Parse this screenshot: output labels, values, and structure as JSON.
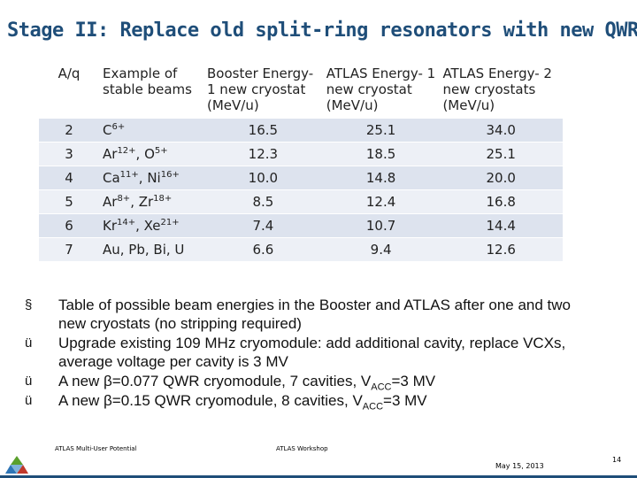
{
  "title": "Stage II: Replace old split-ring resonators with new QWRs",
  "table": {
    "headers": [
      "A/q",
      "Example of stable beams",
      "Booster Energy- 1 new cryostat (MeV/u)",
      "ATLAS Energy- 1 new cryostat (MeV/u)",
      "ATLAS Energy- 2 new cryostats (MeV/u)"
    ],
    "rows": [
      {
        "aq": "2",
        "b1": "C",
        "c1": "6+",
        "b2": "",
        "c2": "",
        "be": "16.5",
        "a1": "25.1",
        "a2": "34.0"
      },
      {
        "aq": "3",
        "b1": "Ar",
        "c1": "12+",
        "b2": ", O",
        "c2": "5+",
        "be": "12.3",
        "a1": "18.5",
        "a2": "25.1"
      },
      {
        "aq": "4",
        "b1": "Ca",
        "c1": "11+",
        "b2": ", Ni",
        "c2": "16+",
        "be": "10.0",
        "a1": "14.8",
        "a2": "20.0"
      },
      {
        "aq": "5",
        "b1": "Ar",
        "c1": "8+",
        "b2": ", Zr",
        "c2": "18+",
        "be": "8.5",
        "a1": "12.4",
        "a2": "16.8"
      },
      {
        "aq": "6",
        "b1": "Kr",
        "c1": "14+",
        "b2": ", Xe",
        "c2": "21+",
        "be": "7.4",
        "a1": "10.7",
        "a2": "14.4"
      },
      {
        "aq": "7",
        "b1": "Au, Pb, Bi, U",
        "c1": "",
        "b2": "",
        "c2": "",
        "be": "6.6",
        "a1": "9.4",
        "a2": "12.6"
      }
    ]
  },
  "bullets": [
    {
      "mark": "§",
      "text": "Table of possible beam energies in the Booster and ATLAS after one and two new cryostats (no stripping required)",
      "sub": "",
      "tail": ""
    },
    {
      "mark": "ü",
      "text": "Upgrade existing 109 MHz cryomodule: add additional cavity, replace VCXs, average voltage per cavity is 3 MV",
      "sub": "",
      "tail": ""
    },
    {
      "mark": "ü",
      "text": "A new β=0.077 QWR cryomodule, 7 cavities, V",
      "sub": "ACC",
      "tail": "=3 MV"
    },
    {
      "mark": "ü",
      "text": "A new β=0.15 QWR cryomodule, 8 cavities, V",
      "sub": "ACC",
      "tail": "=3 MV"
    }
  ],
  "footer": {
    "left": "ATLAS Multi-User Potential",
    "middle": "ATLAS Workshop",
    "date": "May 15, 2013",
    "page": "14"
  },
  "colors": {
    "title": "#1f4e79",
    "row_dark": "#dde3ee",
    "row_light": "#edf0f6"
  },
  "icons": {
    "logo": "argonne-logo-icon"
  }
}
